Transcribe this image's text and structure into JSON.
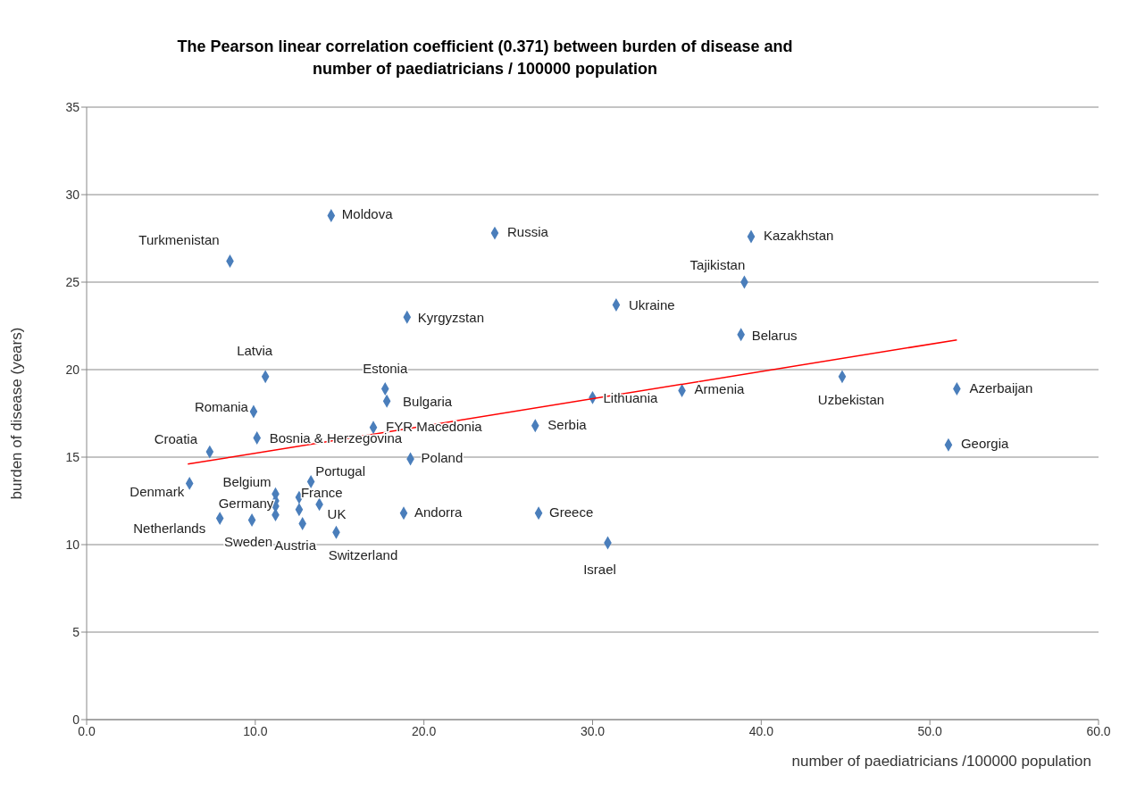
{
  "chart_data": {
    "type": "scatter",
    "title": "The Pearson linear correlation coefficient (0.371) between burden of disease and\nnumber of paediatricians / 100000 population",
    "xlabel": "number of paediatricians  /100000 population",
    "ylabel": "burden of disease (years)",
    "xlim": [
      0,
      60
    ],
    "xticks": [
      {
        "value": 0,
        "label": "0.0"
      },
      {
        "value": 10,
        "label": "10.0"
      },
      {
        "value": 20,
        "label": "20.0"
      },
      {
        "value": 30,
        "label": "30.0"
      },
      {
        "value": 40,
        "label": "40.0"
      },
      {
        "value": 50,
        "label": "50.0"
      },
      {
        "value": 60,
        "label": "60.0"
      }
    ],
    "ylim": [
      0,
      35
    ],
    "yticks": [
      0,
      5,
      10,
      15,
      20,
      25,
      30,
      35
    ],
    "grid": "y",
    "legend": false,
    "marker": "diamond",
    "series": [
      {
        "type": "scatter",
        "color": "#4a7ebb",
        "x": [
          14.5,
          24.2,
          8.5,
          39.4,
          39.0,
          31.4,
          19.0,
          38.8,
          10.6,
          17.7,
          17.8,
          9.9,
          17.0,
          10.1,
          7.3,
          30.0,
          35.3,
          44.8,
          51.6,
          26.6,
          51.1,
          19.2,
          13.3,
          6.1,
          11.2,
          12.6,
          11.2,
          13.8,
          7.9,
          9.8,
          12.8,
          14.8,
          18.8,
          26.8,
          30.9,
          11.2,
          11.2,
          12.6
        ],
        "values": [
          28.8,
          27.8,
          26.2,
          27.6,
          25.0,
          23.7,
          23.0,
          22.0,
          19.6,
          18.9,
          18.2,
          17.6,
          16.7,
          16.1,
          15.3,
          18.4,
          18.8,
          19.6,
          18.9,
          16.8,
          15.7,
          14.9,
          13.6,
          13.5,
          12.9,
          12.7,
          12.2,
          12.3,
          11.5,
          11.4,
          11.2,
          10.7,
          11.8,
          11.8,
          10.1,
          12.5,
          11.7,
          12.0
        ]
      },
      {
        "type": "line",
        "color": "#ff0000",
        "marker": "none",
        "x": [
          6.0,
          51.6
        ],
        "values": [
          14.6,
          21.7
        ]
      }
    ],
    "annotations": [
      {
        "text": "Moldova",
        "x": 14.5,
        "y": 28.8
      },
      {
        "text": "Russia",
        "x": 24.2,
        "y": 27.8
      },
      {
        "text": "Turkmenistan",
        "x": 8.5,
        "y": 26.2
      },
      {
        "text": "Kazakhstan",
        "x": 39.4,
        "y": 27.6
      },
      {
        "text": "Tajikistan",
        "x": 39.0,
        "y": 25.0
      },
      {
        "text": "Ukraine",
        "x": 31.4,
        "y": 23.7
      },
      {
        "text": "Kyrgyzstan",
        "x": 19.0,
        "y": 23.0
      },
      {
        "text": "Belarus",
        "x": 38.8,
        "y": 22.0
      },
      {
        "text": "Latvia",
        "x": 10.6,
        "y": 19.6
      },
      {
        "text": "Estonia",
        "x": 17.7,
        "y": 18.9
      },
      {
        "text": "Bulgaria",
        "x": 17.8,
        "y": 18.2
      },
      {
        "text": "Romania",
        "x": 9.9,
        "y": 17.6
      },
      {
        "text": "FYR Macedonia",
        "x": 17.0,
        "y": 16.7
      },
      {
        "text": "Bosnia & Herzegovina",
        "x": 10.1,
        "y": 16.1
      },
      {
        "text": "Croatia",
        "x": 7.3,
        "y": 15.3
      },
      {
        "text": "Lithuania",
        "x": 30.0,
        "y": 18.4
      },
      {
        "text": "Armenia",
        "x": 35.3,
        "y": 18.8
      },
      {
        "text": "Uzbekistan",
        "x": 44.8,
        "y": 19.6
      },
      {
        "text": "Azerbaijan",
        "x": 51.6,
        "y": 18.9
      },
      {
        "text": "Serbia",
        "x": 26.6,
        "y": 16.8
      },
      {
        "text": "Georgia",
        "x": 51.1,
        "y": 15.7
      },
      {
        "text": "Poland",
        "x": 19.2,
        "y": 14.9
      },
      {
        "text": "Portugal",
        "x": 13.3,
        "y": 13.6
      },
      {
        "text": "Denmark",
        "x": 6.1,
        "y": 13.5
      },
      {
        "text": "Belgium",
        "x": 11.2,
        "y": 12.9
      },
      {
        "text": "France",
        "x": 12.6,
        "y": 12.7
      },
      {
        "text": "Germany",
        "x": 11.2,
        "y": 12.2
      },
      {
        "text": "UK",
        "x": 13.8,
        "y": 12.3
      },
      {
        "text": "Netherlands",
        "x": 7.9,
        "y": 11.5
      },
      {
        "text": "Sweden",
        "x": 9.8,
        "y": 11.4
      },
      {
        "text": "Austria",
        "x": 12.8,
        "y": 11.2
      },
      {
        "text": "Switzerland",
        "x": 14.8,
        "y": 10.7
      },
      {
        "text": "Andorra",
        "x": 18.8,
        "y": 11.8
      },
      {
        "text": "Greece",
        "x": 26.8,
        "y": 11.8
      },
      {
        "text": "Israel",
        "x": 30.9,
        "y": 10.1
      }
    ]
  }
}
